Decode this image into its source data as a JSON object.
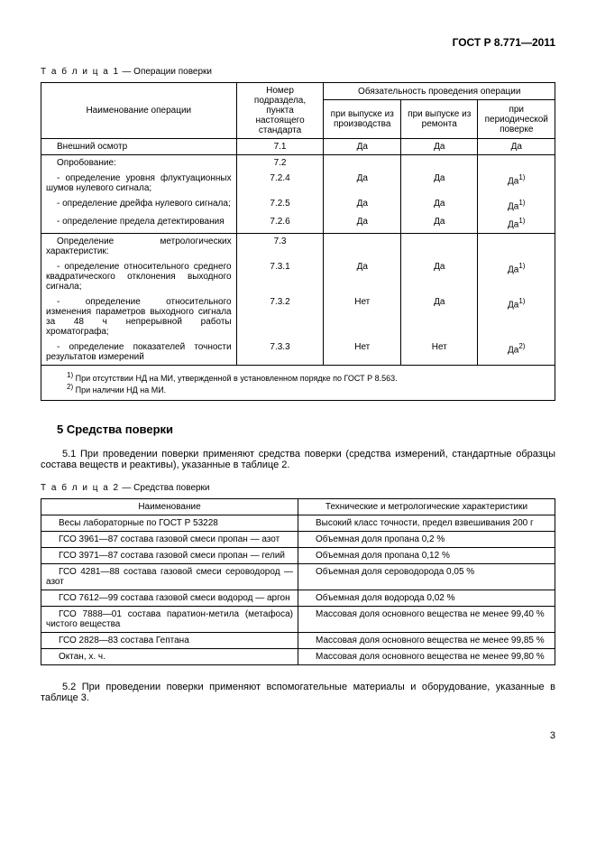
{
  "header": "ГОСТ Р 8.771—2011",
  "table1": {
    "caption_prefix": "Т а б л и ц а  1",
    "caption_rest": " — Операции поверки",
    "col_headers": {
      "name": "Наименование операции",
      "section": "Номер подраздела, пункта настоящего стандарта",
      "mandatory": "Обязательность проведения операции",
      "production": "при выпуске из производства",
      "repair": "при выпуске из ремонта",
      "periodic": "при периодической поверке"
    },
    "rows": [
      {
        "name": "Внешний осмотр",
        "section": "7.1",
        "p": "Да",
        "r": "Да",
        "per": "Да",
        "indent": false,
        "sup": ""
      },
      {
        "name": "Опробование:",
        "section": "7.2",
        "p": "",
        "r": "",
        "per": "",
        "indent": false,
        "sup": ""
      },
      {
        "name": "- определение уровня флуктуационных шумов нулевого сигнала;",
        "section": "7.2.4",
        "p": "Да",
        "r": "Да",
        "per": "Да",
        "indent": true,
        "sup": "1)"
      },
      {
        "name": "- определение дрейфа нулевого сигнала;",
        "section": "7.2.5",
        "p": "Да",
        "r": "Да",
        "per": "Да",
        "indent": true,
        "sup": "1)"
      },
      {
        "name": "- определение предела детектирования",
        "section": "7.2.6",
        "p": "Да",
        "r": "Да",
        "per": "Да",
        "indent": true,
        "sup": "1)"
      },
      {
        "name": "Определение метрологических характеристик:",
        "section": "7.3",
        "p": "",
        "r": "",
        "per": "",
        "indent": false,
        "sup": ""
      },
      {
        "name": "- определение относительного среднего квадратического отклонения выходного сигнала;",
        "section": "7.3.1",
        "p": "Да",
        "r": "Да",
        "per": "Да",
        "indent": true,
        "sup": "1)"
      },
      {
        "name": "- определение относительного изменения параметров выходного сигнала за 48 ч непрерывной работы хроматографа;",
        "section": "7.3.2",
        "p": "Нет",
        "r": "Да",
        "per": "Да",
        "indent": true,
        "sup": "1)"
      },
      {
        "name": "- определение показателей точности результатов измерений",
        "section": "7.3.3",
        "p": "Нет",
        "r": "Нет",
        "per": "Да",
        "indent": true,
        "sup": "2)"
      }
    ],
    "footnotes": {
      "f1": "При отсутствии НД на МИ, утвержденной в установленном порядке по ГОСТ Р 8.563.",
      "f2": "При наличии НД на МИ."
    }
  },
  "section5": {
    "title": "5  Средства поверки",
    "p1": "5.1 При проведении поверки применяют средства поверки (средства измерений, стандартные образцы состава веществ и реактивы), указанные в таблице 2.",
    "p2": "5.2 При проведении поверки применяют вспомогательные материалы и оборудование, указанные в таблице 3."
  },
  "table2": {
    "caption_prefix": "Т а б л и ц а  2",
    "caption_rest": " — Средства поверки",
    "col_headers": {
      "name": "Наименование",
      "spec": "Технические и метрологические характеристики"
    },
    "rows": [
      {
        "name": "Весы лабораторные по ГОСТ Р 53228",
        "spec": "Высокий класс точности, предел взвешивания 200 г"
      },
      {
        "name": "ГСО 3961—87 состава газовой смеси пропан — азот",
        "spec": "Объемная доля пропана 0,2 %"
      },
      {
        "name": "ГСО 3971—87 состава газовой смеси пропан — гелий",
        "spec": "Объемная доля пропана 0,12 %"
      },
      {
        "name": "ГСО 4281—88 состава газовой смеси сероводород — азот",
        "spec": "Объемная доля сероводорода 0,05 %"
      },
      {
        "name": "ГСО 7612—99 состава газовой смеси водород — аргон",
        "spec": "Объемная доля водорода 0,02 %"
      },
      {
        "name": "ГСО 7888—01 состава паратион-метила (метафоса) чистого вещества",
        "spec": "Массовая доля основного вещества не менее 99,40 %"
      },
      {
        "name": "ГСО 2828—83 состава Гептана",
        "spec": "Массовая доля основного вещества не менее 99,85 %"
      },
      {
        "name": "Октан, х. ч.",
        "spec": "Массовая доля основного вещества не менее 99,80 %"
      }
    ]
  },
  "page_number": "3"
}
